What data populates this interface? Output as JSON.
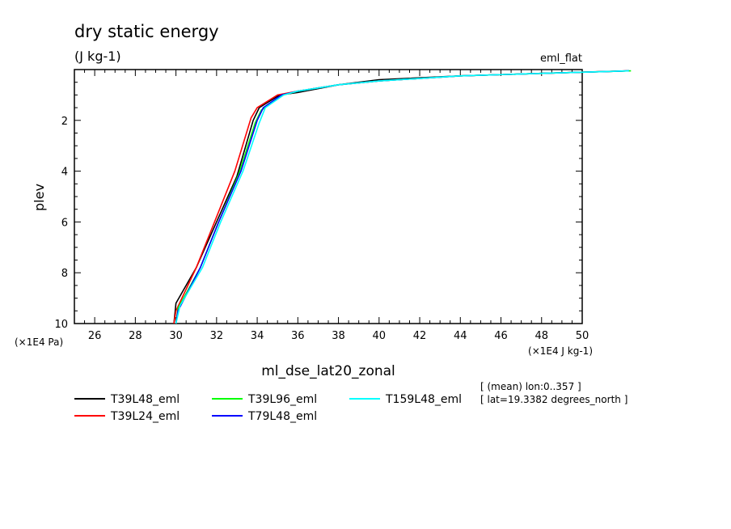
{
  "chart_data": {
    "type": "line",
    "title": "dry static energy",
    "subtitle": "(J kg-1)",
    "corner_label": "eml_flat",
    "xlabel": "ml_dse_lat20_zonal",
    "ylabel": "plev",
    "x_unit": "(×1E4 J kg-1)",
    "y_unit": "(×1E4 Pa)",
    "xlim": [
      25,
      50
    ],
    "ylim": [
      10,
      0
    ],
    "x_ticks": [
      26,
      28,
      30,
      32,
      34,
      36,
      38,
      40,
      42,
      44,
      46,
      48,
      50
    ],
    "y_ticks": [
      2,
      4,
      6,
      8,
      10
    ],
    "info_lines": [
      "[ (mean) lon:0..357 ]",
      "[ lat=19.3382 degrees_north ]"
    ],
    "series": [
      {
        "name": "T39L48_eml",
        "color": "#000000",
        "points": [
          [
            29.9,
            10
          ],
          [
            30.0,
            9.2
          ],
          [
            31.0,
            7.8
          ],
          [
            32.0,
            6.0
          ],
          [
            33.0,
            4.2
          ],
          [
            33.8,
            2.0
          ],
          [
            34.1,
            1.5
          ],
          [
            35.1,
            1.0
          ],
          [
            36.0,
            0.9
          ],
          [
            38.0,
            0.6
          ],
          [
            40.0,
            0.4
          ],
          [
            44.0,
            0.25
          ],
          [
            48.0,
            0.15
          ],
          [
            52.3,
            0.05
          ]
        ]
      },
      {
        "name": "T39L24_eml",
        "color": "#ff0000",
        "points": [
          [
            29.9,
            10
          ],
          [
            30.0,
            9.5
          ],
          [
            31.0,
            7.8
          ],
          [
            31.9,
            6.0
          ],
          [
            32.9,
            4.0
          ],
          [
            33.7,
            1.9
          ],
          [
            34.0,
            1.5
          ],
          [
            35.0,
            1.0
          ],
          [
            36.0,
            0.85
          ],
          [
            38.0,
            0.6
          ],
          [
            40.0,
            0.45
          ],
          [
            44.0,
            0.25
          ],
          [
            48.0,
            0.15
          ],
          [
            52.2,
            0.05
          ]
        ]
      },
      {
        "name": "T39L96_eml",
        "color": "#00ff00",
        "points": [
          [
            30.0,
            10
          ],
          [
            30.1,
            9.4
          ],
          [
            31.2,
            7.8
          ],
          [
            32.1,
            6.0
          ],
          [
            33.1,
            4.1
          ],
          [
            33.9,
            2.1
          ],
          [
            34.2,
            1.6
          ],
          [
            35.3,
            1.0
          ],
          [
            36.0,
            0.85
          ],
          [
            38.0,
            0.6
          ],
          [
            40.0,
            0.45
          ],
          [
            44.0,
            0.25
          ],
          [
            48.0,
            0.15
          ],
          [
            52.4,
            0.05
          ]
        ]
      },
      {
        "name": "T79L48_eml",
        "color": "#0000ff",
        "points": [
          [
            30.0,
            10
          ],
          [
            30.1,
            9.5
          ],
          [
            31.2,
            7.8
          ],
          [
            32.1,
            6.0
          ],
          [
            33.2,
            4.0
          ],
          [
            34.0,
            2.0
          ],
          [
            34.3,
            1.5
          ],
          [
            35.2,
            1.0
          ],
          [
            36.0,
            0.85
          ],
          [
            38.0,
            0.6
          ],
          [
            40.0,
            0.45
          ],
          [
            44.0,
            0.25
          ],
          [
            48.0,
            0.15
          ],
          [
            52.3,
            0.05
          ]
        ]
      },
      {
        "name": "T159L48_eml",
        "color": "#00ffff",
        "points": [
          [
            30.0,
            10
          ],
          [
            30.2,
            9.3
          ],
          [
            31.3,
            7.8
          ],
          [
            32.2,
            6.0
          ],
          [
            33.3,
            4.0
          ],
          [
            34.1,
            2.1
          ],
          [
            34.4,
            1.5
          ],
          [
            35.3,
            1.0
          ],
          [
            36.0,
            0.85
          ],
          [
            38.0,
            0.6
          ],
          [
            40.0,
            0.45
          ],
          [
            44.0,
            0.25
          ],
          [
            48.0,
            0.15
          ],
          [
            52.3,
            0.05
          ]
        ]
      }
    ],
    "legend_position": "bottom-left",
    "grid": false
  }
}
